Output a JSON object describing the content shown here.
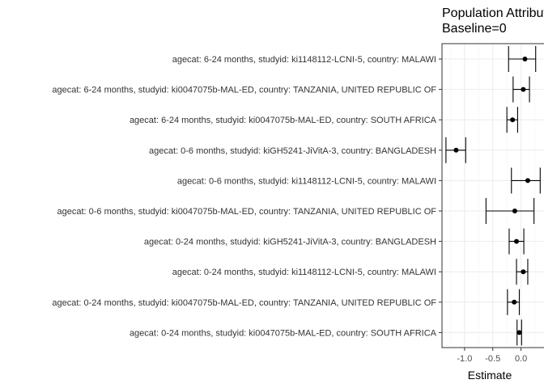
{
  "chart_data": {
    "type": "forest",
    "title_lines": [
      "Population Attributable Fraction",
      "Baseline=0"
    ],
    "xlabel": "Estimate",
    "xlim": [
      -1.4,
      0.35
    ],
    "xticks": [
      -1.0,
      -0.5,
      0.0
    ],
    "xtick_labels": [
      "-1.0",
      "-0.5",
      "0.0"
    ],
    "grid": true,
    "categories": [
      "agecat: 6-24 months, studyid: ki1148112-LCNI-5, country: MALAWI",
      "agecat: 6-24 months, studyid: ki0047075b-MAL-ED, country: TANZANIA, UNITED REPUBLIC OF",
      "agecat: 6-24 months, studyid: ki0047075b-MAL-ED, country: SOUTH AFRICA",
      "agecat: 0-6 months, studyid: kiGH5241-JiVitA-3, country: BANGLADESH",
      "agecat: 0-6 months, studyid: ki1148112-LCNI-5, country: MALAWI",
      "agecat: 0-6 months, studyid: ki0047075b-MAL-ED, country: TANZANIA, UNITED REPUBLIC OF",
      "agecat: 0-24 months, studyid: kiGH5241-JiVitA-3, country: BANGLADESH",
      "agecat: 0-24 months, studyid: ki1148112-LCNI-5, country: MALAWI",
      "agecat: 0-24 months, studyid: ki0047075b-MAL-ED, country: TANZANIA, UNITED REPUBLIC OF",
      "agecat: 0-24 months, studyid: ki0047075b-MAL-ED, country: SOUTH AFRICA"
    ],
    "estimate": [
      0.07,
      0.04,
      -0.15,
      -1.15,
      0.12,
      -0.11,
      -0.08,
      0.04,
      -0.12,
      -0.03
    ],
    "lower": [
      -0.22,
      -0.14,
      -0.25,
      -1.33,
      -0.17,
      -0.62,
      -0.21,
      -0.08,
      -0.24,
      -0.07
    ],
    "upper": [
      0.26,
      0.15,
      -0.06,
      -0.98,
      0.34,
      0.23,
      0.05,
      0.12,
      -0.03,
      0.01
    ],
    "colors": {
      "panel_border": "#333333",
      "grid_major": "#ebebeb",
      "grid_minor": "#f5f5f5",
      "mark": "#000000"
    }
  }
}
